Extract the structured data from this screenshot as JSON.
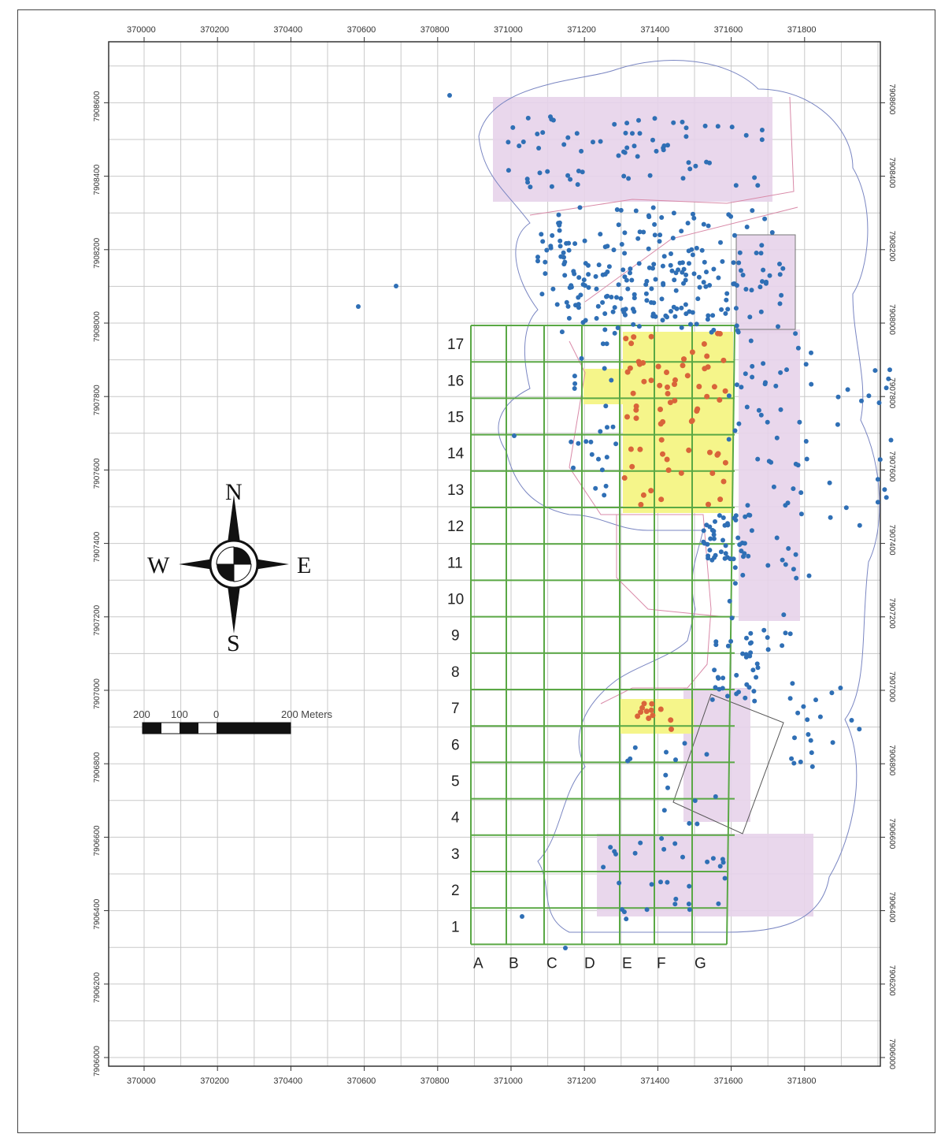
{
  "map": {
    "top_x_ticks": [
      "370000",
      "370200",
      "370400",
      "370600",
      "370800",
      "371000",
      "371200",
      "371400",
      "371600",
      "371800"
    ],
    "bottom_x_ticks": [
      "370000",
      "370200",
      "370400",
      "370600",
      "370800",
      "371000",
      "371200",
      "371400",
      "371600",
      "371800"
    ],
    "left_y_ticks": [
      "7906000",
      "7906200",
      "7906400",
      "7906600",
      "7906800",
      "7907000",
      "7907200",
      "7907400",
      "7907600",
      "7907800",
      "7908000",
      "7908200",
      "7908400",
      "7908600"
    ],
    "right_y_ticks": [
      "7906000",
      "7906200",
      "7906400",
      "7906600",
      "7906800",
      "7907000",
      "7907200",
      "7907400",
      "7907600",
      "7907800",
      "7908000",
      "7908200",
      "7908400",
      "7908600"
    ],
    "grid_columns": [
      "A",
      "B",
      "C",
      "D",
      "E",
      "F",
      "G"
    ],
    "grid_rows": [
      "1",
      "2",
      "3",
      "4",
      "5",
      "6",
      "7",
      "8",
      "9",
      "10",
      "11",
      "12",
      "13",
      "14",
      "15",
      "16",
      "17"
    ],
    "compass": {
      "north": "N",
      "south": "S",
      "east": "E",
      "west": "W"
    },
    "scale_bar": {
      "labels": [
        "200",
        "100",
        "0",
        "200 Meters"
      ]
    },
    "colors": {
      "grid_green": "#5aa845",
      "lavender_zone": "#e7d3ea",
      "yellow_zone": "#f5f58a",
      "blue_points": "#2f6fb5",
      "orange_points": "#d9643a",
      "outline_blue": "#7a86c2",
      "outline_pink": "#d98aa8",
      "fine_grid": "#c8c8c8"
    }
  }
}
